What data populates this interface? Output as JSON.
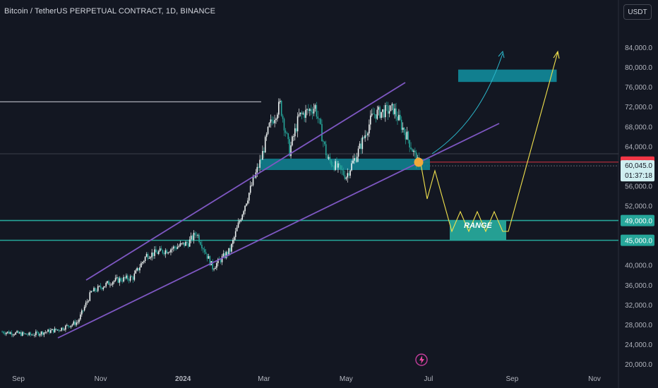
{
  "header": {
    "title": "Bitcoin / TetherUS PERPETUAL CONTRACT, 1D, BINANCE",
    "currency_button": "USDT"
  },
  "colors": {
    "background": "#131722",
    "axis_text": "#b2b5be",
    "candle_up": "#eef3f2",
    "candle_down": "#26a69a",
    "channel": "#7e57c2",
    "level": "#26a69a",
    "projection_up": "#2bb8cc",
    "projection_zigzag": "#f2e24d",
    "target_box": "#117f8f",
    "price_red": "#f23645",
    "current_price_bg": "#cfeef0",
    "marker": "#f0a93b"
  },
  "chart_data": {
    "type": "candlestick",
    "title": "Bitcoin / TetherUS PERPETUAL CONTRACT, 1D, BINANCE",
    "y_ticks": [
      20000,
      24000,
      28000,
      32000,
      36000,
      40000,
      45000,
      49000,
      52000,
      56000,
      60045,
      60800,
      64000,
      68000,
      72000,
      76000,
      80000,
      84000
    ],
    "y_tick_labels": [
      "20,000.0",
      "24,000.0",
      "28,000.0",
      "32,000.0",
      "36,000.0",
      "40,000.0",
      "45,000.0",
      "49,000.0",
      "52,000.0",
      "56,000.0",
      "60,045.0",
      "60,800.0",
      "64,000.0",
      "68,000.0",
      "72,000.0",
      "76,000.0",
      "80,000.0",
      "84,000.0"
    ],
    "x_tick_labels": [
      "Sep",
      "Nov",
      "2024",
      "Mar",
      "May",
      "Jul",
      "Sep",
      "Nov"
    ],
    "x_tick_dates": [
      "2023-09-01",
      "2023-11-01",
      "2024-01-01",
      "2024-03-01",
      "2024-05-01",
      "2024-07-01",
      "2024-09-01",
      "2024-11-01"
    ],
    "series": [
      {
        "name": "BTCUSDT",
        "x": [
          "2023-08-20",
          "2023-09-10",
          "2023-10-01",
          "2023-10-15",
          "2023-10-25",
          "2023-11-10",
          "2023-11-25",
          "2023-12-05",
          "2023-12-20",
          "2024-01-05",
          "2024-01-11",
          "2024-01-23",
          "2024-02-05",
          "2024-02-15",
          "2024-02-28",
          "2024-03-05",
          "2024-03-13",
          "2024-03-20",
          "2024-03-27",
          "2024-04-08",
          "2024-04-17",
          "2024-05-01",
          "2024-05-10",
          "2024-05-21",
          "2024-06-05",
          "2024-06-15",
          "2024-06-24"
        ],
        "values": [
          26500,
          25900,
          27000,
          28500,
          34500,
          36800,
          37500,
          42000,
          43000,
          44500,
          46500,
          39500,
          43000,
          51500,
          61500,
          68000,
          72500,
          63000,
          70000,
          72000,
          61500,
          58000,
          63000,
          70500,
          71500,
          66000,
          60045
        ]
      }
    ],
    "levels": [
      {
        "label": "49,000.0",
        "value": 49000
      },
      {
        "label": "45,000.0",
        "value": 45000
      }
    ],
    "current_price": {
      "label": "60,045.0",
      "value": 60045,
      "countdown": "01:37:18"
    },
    "red_price": {
      "label": "60,800.0",
      "value": 60800
    },
    "annotations": [
      {
        "type": "text",
        "text": "RANGE"
      },
      {
        "type": "horizontal_line",
        "value": 73000,
        "from": "2023-08-15",
        "to": "2024-02-28"
      },
      {
        "type": "target_box",
        "from": "2024-07-23",
        "to": "2024-10-04",
        "y_low": 77000,
        "y_high": 79500
      }
    ],
    "ylim": [
      18500,
      88000
    ],
    "xlim": [
      "2023-08-15",
      "2024-11-25"
    ]
  }
}
